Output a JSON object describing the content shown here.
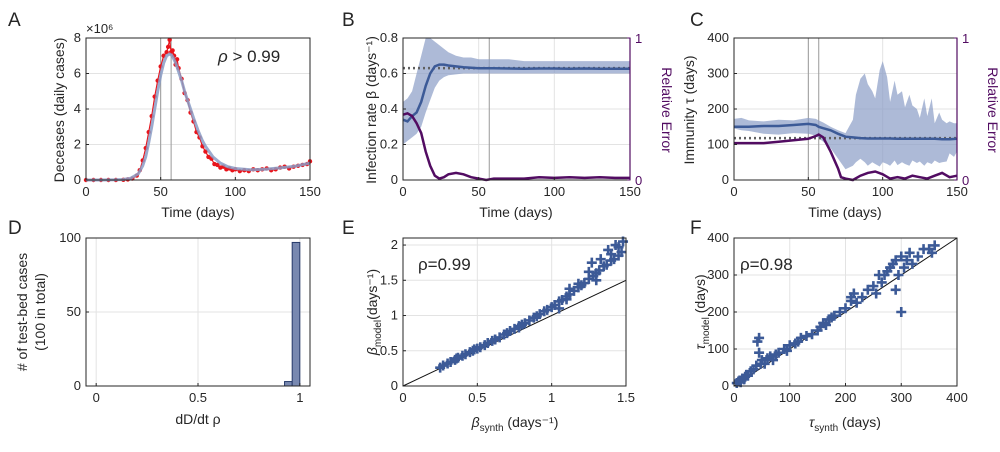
{
  "colors": {
    "data_red": "#e8141b",
    "model_blue": "#3c5a97",
    "band_blue": "#8a9cc6",
    "error_purple": "#520c62",
    "reference_gray": "#5f5f5f",
    "bar_fill": "#7888b0",
    "bar_edge": "#263a6a",
    "axis": "#262626",
    "grid": "#e3e3e3"
  },
  "chart_data": [
    {
      "panel": "A",
      "type": "line",
      "xlabel": "Time (days)",
      "ylabel": "Deceases (daily cases)",
      "exponent_label": "×10⁶",
      "xlim": [
        0,
        150
      ],
      "ylim": [
        0,
        8
      ],
      "xticks": [
        0,
        50,
        100,
        150
      ],
      "yticks": [
        0,
        2,
        4,
        6,
        8
      ],
      "grid": true,
      "vlines": [
        50,
        57
      ],
      "annotation": {
        "prefix": "ρ",
        "rest": " > 0.99"
      },
      "data_points": {
        "x": [
          0,
          5,
          10,
          15,
          20,
          25,
          28,
          31,
          34,
          36,
          38,
          40,
          42,
          44,
          46,
          48,
          50,
          52,
          54,
          55,
          56,
          57,
          58,
          59,
          60,
          61,
          62,
          64,
          66,
          68,
          70,
          72,
          74,
          76,
          78,
          80,
          82,
          84,
          86,
          88,
          90,
          92,
          94,
          96,
          98,
          100,
          103,
          106,
          109,
          112,
          115,
          118,
          121,
          124,
          127,
          130,
          133,
          136,
          139,
          142,
          145,
          148,
          150
        ],
        "y": [
          0,
          0,
          0,
          0,
          0,
          0.01,
          0.03,
          0.08,
          0.25,
          0.55,
          1.1,
          1.8,
          2.7,
          3.6,
          4.7,
          5.6,
          6.4,
          7.0,
          7.2,
          7.5,
          7.9,
          7.2,
          7.3,
          7.0,
          6.5,
          6.8,
          6.3,
          5.7,
          4.9,
          4.5,
          3.8,
          3.3,
          2.7,
          2.4,
          1.9,
          1.6,
          1.3,
          1.2,
          0.9,
          0.85,
          0.7,
          0.75,
          0.6,
          0.65,
          0.55,
          0.6,
          0.5,
          0.55,
          0.5,
          0.6,
          0.55,
          0.6,
          0.65,
          0.55,
          0.6,
          0.7,
          0.75,
          0.65,
          0.75,
          0.8,
          0.85,
          0.9,
          1.05
        ]
      },
      "model_curve": {
        "x": [
          0,
          10,
          20,
          25,
          30,
          35,
          38,
          40,
          42,
          44,
          46,
          48,
          50,
          52,
          54,
          56,
          57,
          58,
          60,
          62,
          64,
          66,
          68,
          70,
          72,
          75,
          78,
          80,
          85,
          90,
          95,
          100,
          110,
          120,
          130,
          140,
          150
        ],
        "y": [
          0,
          0,
          0.01,
          0.03,
          0.1,
          0.35,
          0.8,
          1.3,
          2.1,
          3.0,
          4.0,
          5.0,
          5.9,
          6.6,
          7.0,
          7.1,
          7.05,
          6.95,
          6.6,
          6.1,
          5.6,
          5.0,
          4.5,
          4.0,
          3.5,
          2.8,
          2.2,
          1.9,
          1.3,
          0.95,
          0.75,
          0.65,
          0.58,
          0.6,
          0.68,
          0.78,
          0.95
        ]
      }
    },
    {
      "panel": "B",
      "type": "line",
      "xlabel": "Time (days)",
      "ylabel": "Infection rate β (days⁻¹)",
      "right_ylabel": "Relative Error",
      "xlim": [
        0,
        150
      ],
      "ylim": [
        0,
        0.8
      ],
      "right_ylim": [
        0,
        1
      ],
      "xticks": [
        0,
        50,
        100,
        150
      ],
      "yticks": [
        0,
        0.2,
        0.4,
        0.6,
        0.8
      ],
      "right_yticks": [
        0,
        1
      ],
      "grid": true,
      "vlines": [
        57
      ],
      "reference": 0.63,
      "mean": {
        "x": [
          0,
          3,
          6,
          9,
          12,
          15,
          18,
          21,
          24,
          27,
          30,
          35,
          40,
          45,
          50,
          55,
          60,
          70,
          80,
          90,
          100,
          110,
          120,
          130,
          140,
          150
        ],
        "y": [
          0.34,
          0.33,
          0.36,
          0.38,
          0.44,
          0.53,
          0.6,
          0.64,
          0.65,
          0.65,
          0.645,
          0.64,
          0.635,
          0.632,
          0.63,
          0.63,
          0.63,
          0.628,
          0.627,
          0.628,
          0.628,
          0.627,
          0.628,
          0.627,
          0.627,
          0.627
        ]
      },
      "band": {
        "x": [
          0,
          3,
          6,
          9,
          12,
          15,
          18,
          21,
          24,
          27,
          30,
          35,
          40,
          45,
          50,
          55,
          60,
          70,
          80,
          90,
          100,
          110,
          120,
          130,
          140,
          150
        ],
        "upper": [
          0.44,
          0.46,
          0.5,
          0.6,
          0.7,
          0.8,
          0.8,
          0.78,
          0.76,
          0.74,
          0.72,
          0.7,
          0.69,
          0.69,
          0.68,
          0.68,
          0.68,
          0.68,
          0.67,
          0.67,
          0.67,
          0.67,
          0.67,
          0.67,
          0.67,
          0.67
        ],
        "lower": [
          0.2,
          0.22,
          0.24,
          0.26,
          0.3,
          0.38,
          0.45,
          0.52,
          0.56,
          0.58,
          0.59,
          0.595,
          0.6,
          0.6,
          0.6,
          0.6,
          0.6,
          0.6,
          0.6,
          0.6,
          0.6,
          0.6,
          0.6,
          0.6,
          0.6,
          0.6
        ]
      },
      "relative_error": {
        "x": [
          0,
          3,
          6,
          9,
          12,
          15,
          18,
          21,
          24,
          27,
          30,
          35,
          40,
          45,
          50,
          55,
          60,
          70,
          80,
          90,
          100,
          110,
          120,
          130,
          140,
          150
        ],
        "y": [
          0.46,
          0.47,
          0.45,
          0.4,
          0.33,
          0.2,
          0.1,
          0.03,
          0.01,
          0.02,
          0.04,
          0.05,
          0.04,
          0.02,
          0.01,
          0.0,
          0.01,
          0.01,
          0.01,
          0.02,
          0.015,
          0.02,
          0.015,
          0.02,
          0.015,
          0.015
        ]
      }
    },
    {
      "panel": "C",
      "type": "line",
      "xlabel": "Time (days)",
      "ylabel": "Immunity τ (days)",
      "right_ylabel": "Relative Error",
      "xlim": [
        0,
        150
      ],
      "ylim": [
        0,
        400
      ],
      "right_ylim": [
        0,
        1
      ],
      "xticks": [
        0,
        50,
        100,
        150
      ],
      "yticks": [
        0,
        100,
        200,
        300,
        400
      ],
      "right_yticks": [
        0,
        1
      ],
      "grid": true,
      "vlines": [
        50,
        57
      ],
      "reference": 118,
      "mean": {
        "x": [
          0,
          10,
          20,
          30,
          40,
          50,
          55,
          57,
          60,
          65,
          70,
          75,
          80,
          85,
          90,
          95,
          100,
          105,
          110,
          115,
          120,
          125,
          130,
          135,
          140,
          145,
          150
        ],
        "y": [
          150,
          150,
          152,
          152,
          155,
          158,
          155,
          150,
          146,
          140,
          130,
          122,
          120,
          118,
          117,
          117,
          117,
          117,
          116,
          116,
          116,
          116,
          116,
          116,
          115,
          115,
          116
        ]
      },
      "band": {
        "x": [
          0,
          5,
          10,
          20,
          30,
          40,
          50,
          55,
          57,
          60,
          65,
          70,
          75,
          80,
          82,
          85,
          88,
          90,
          93,
          95,
          98,
          100,
          103,
          105,
          108,
          110,
          113,
          115,
          118,
          120,
          123,
          125,
          128,
          130,
          133,
          135,
          138,
          140,
          143,
          145,
          148,
          150
        ],
        "upper": [
          172,
          175,
          168,
          165,
          170,
          168,
          175,
          172,
          168,
          162,
          150,
          140,
          132,
          170,
          240,
          285,
          300,
          270,
          250,
          230,
          310,
          335,
          290,
          220,
          280,
          240,
          250,
          205,
          240,
          210,
          200,
          175,
          230,
          180,
          230,
          160,
          190,
          170,
          160,
          165,
          160,
          160
        ],
        "lower": [
          145,
          140,
          138,
          130,
          128,
          132,
          130,
          125,
          118,
          108,
          90,
          60,
          30,
          40,
          50,
          60,
          50,
          40,
          50,
          45,
          38,
          50,
          45,
          40,
          55,
          42,
          50,
          45,
          40,
          55,
          48,
          52,
          40,
          50,
          45,
          55,
          48,
          50,
          52,
          75,
          65,
          80
        ]
      },
      "relative_error": {
        "x": [
          0,
          10,
          20,
          30,
          40,
          50,
          55,
          57,
          60,
          65,
          70,
          72,
          75,
          80,
          85,
          90,
          95,
          100,
          105,
          110,
          115,
          120,
          125,
          130,
          135,
          140,
          145,
          150
        ],
        "y": [
          0.26,
          0.26,
          0.26,
          0.27,
          0.28,
          0.29,
          0.31,
          0.32,
          0.3,
          0.2,
          0.08,
          0.02,
          0.01,
          0.0,
          0.03,
          0.05,
          0.06,
          0.04,
          0.01,
          0.02,
          0.01,
          0.03,
          0.02,
          0.01,
          0.03,
          0.05,
          0.02,
          0.03
        ]
      }
    },
    {
      "panel": "D",
      "type": "bar",
      "xlabel": "dD/dt ρ",
      "ylabel": "# of test-bed cases",
      "ylabel2": "(100 in total)",
      "xlim": [
        -0.05,
        1.05
      ],
      "ylim": [
        0,
        100
      ],
      "xticks": [
        0,
        0.5,
        1
      ],
      "yticks": [
        0,
        50,
        100
      ],
      "grid": true,
      "bins": [
        {
          "x0": 0.925,
          "x1": 0.9625,
          "count": 3
        },
        {
          "x0": 0.9625,
          "x1": 1.0,
          "count": 97
        }
      ]
    },
    {
      "panel": "E",
      "type": "scatter",
      "xlabel_sym": "β",
      "xlabel_sub": "synth",
      "xlabel_unit": " (days⁻¹)",
      "ylabel_sym": "β",
      "ylabel_sub": "model",
      "ylabel_unit": "(days⁻¹)",
      "xlim": [
        0,
        1.5
      ],
      "ylim": [
        0,
        2.1
      ],
      "xticks": [
        0,
        0.5,
        1,
        1.5
      ],
      "yticks": [
        0,
        0.5,
        1,
        1.5,
        2
      ],
      "grid": true,
      "identity_line": true,
      "annotation": "ρ=0.99",
      "points": {
        "x": [
          0.25,
          0.27,
          0.3,
          0.32,
          0.35,
          0.37,
          0.4,
          0.42,
          0.45,
          0.47,
          0.5,
          0.52,
          0.55,
          0.57,
          0.6,
          0.62,
          0.65,
          0.68,
          0.7,
          0.72,
          0.75,
          0.78,
          0.8,
          0.82,
          0.85,
          0.88,
          0.9,
          0.92,
          0.95,
          0.97,
          1.0,
          1.02,
          1.05,
          1.07,
          1.1,
          1.12,
          1.15,
          1.18,
          1.2,
          1.22,
          1.25,
          1.28,
          1.3,
          1.32,
          1.35,
          1.37,
          1.4,
          1.42,
          1.45,
          1.47,
          1.05,
          1.12,
          1.18,
          1.27,
          1.33,
          1.38,
          1.43,
          1.48,
          1.1,
          0.78,
          0.62,
          0.48,
          0.36,
          1.3,
          1.25,
          1.4,
          1.45
        ],
        "y": [
          0.26,
          0.29,
          0.32,
          0.34,
          0.37,
          0.4,
          0.43,
          0.45,
          0.48,
          0.5,
          0.53,
          0.55,
          0.58,
          0.61,
          0.64,
          0.66,
          0.69,
          0.73,
          0.75,
          0.78,
          0.81,
          0.85,
          0.87,
          0.89,
          0.93,
          0.97,
          0.99,
          1.02,
          1.06,
          1.08,
          1.12,
          1.15,
          1.2,
          1.22,
          1.27,
          1.3,
          1.35,
          1.4,
          1.43,
          1.46,
          1.52,
          1.56,
          1.6,
          1.64,
          1.7,
          1.72,
          1.78,
          1.8,
          1.85,
          1.9,
          1.1,
          1.38,
          1.45,
          1.75,
          1.8,
          1.93,
          2.0,
          2.05,
          1.23,
          0.83,
          0.66,
          0.52,
          0.39,
          1.5,
          1.62,
          1.87,
          1.97
        ]
      }
    },
    {
      "panel": "F",
      "type": "scatter",
      "xlabel_sym": "τ",
      "xlabel_sub": "synth",
      "xlabel_unit": " (days)",
      "ylabel_sym": "τ",
      "ylabel_sub": "model",
      "ylabel_unit": " (days)",
      "xlim": [
        0,
        400
      ],
      "ylim": [
        0,
        400
      ],
      "xticks": [
        0,
        100,
        200,
        300,
        400
      ],
      "yticks": [
        0,
        100,
        200,
        300,
        400
      ],
      "grid": true,
      "identity_line": true,
      "annotation": "ρ=0.98",
      "points": {
        "x": [
          5,
          8,
          10,
          12,
          15,
          18,
          20,
          22,
          25,
          30,
          35,
          40,
          42,
          45,
          48,
          50,
          55,
          60,
          65,
          70,
          75,
          80,
          90,
          95,
          100,
          110,
          115,
          120,
          130,
          140,
          150,
          155,
          160,
          165,
          170,
          175,
          180,
          190,
          200,
          210,
          215,
          220,
          230,
          240,
          250,
          255,
          260,
          265,
          270,
          275,
          280,
          285,
          290,
          295,
          300,
          305,
          310,
          315,
          320,
          330,
          340,
          350,
          355,
          360,
          45,
          300,
          210,
          290
        ],
        "y": [
          8,
          12,
          15,
          10,
          20,
          18,
          25,
          30,
          28,
          40,
          45,
          55,
          120,
          90,
          60,
          70,
          60,
          75,
          80,
          70,
          85,
          90,
          100,
          95,
          110,
          115,
          120,
          130,
          135,
          140,
          150,
          160,
          170,
          165,
          180,
          185,
          190,
          200,
          210,
          230,
          250,
          225,
          240,
          260,
          270,
          250,
          300,
          280,
          300,
          310,
          320,
          330,
          340,
          300,
          350,
          320,
          340,
          360,
          330,
          350,
          370,
          370,
          360,
          380,
          130,
          200,
          240,
          260
        ]
      }
    }
  ]
}
